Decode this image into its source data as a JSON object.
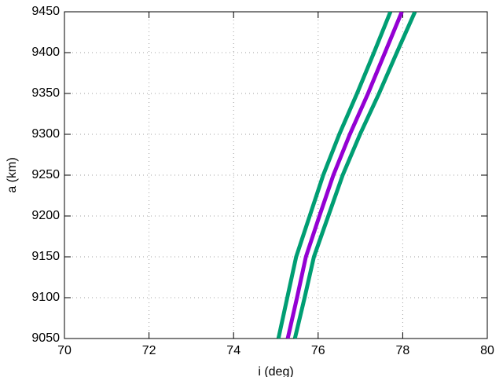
{
  "chart_data": {
    "type": "line",
    "xlabel": "i (deg)",
    "ylabel": "a (km)",
    "xlim": [
      70,
      80
    ],
    "xticks": [
      70,
      72,
      74,
      76,
      78,
      80
    ],
    "ylim": [
      9050,
      9450
    ],
    "yticks": [
      9050,
      9100,
      9150,
      9200,
      9250,
      9300,
      9350,
      9400,
      9450
    ],
    "grid": true,
    "series": [
      {
        "color": "#009e73",
        "x": [
          75.06,
          75.27,
          75.48,
          75.8,
          76.12,
          76.5,
          76.92,
          77.32,
          77.71
        ],
        "values": [
          9050,
          9100,
          9150,
          9200,
          9250,
          9300,
          9350,
          9400,
          9450
        ]
      },
      {
        "color": "#9400d3",
        "x": [
          75.28,
          75.5,
          75.71,
          76.03,
          76.36,
          76.75,
          77.18,
          77.58,
          77.98
        ],
        "values": [
          9050,
          9100,
          9150,
          9200,
          9250,
          9300,
          9350,
          9400,
          9450
        ]
      },
      {
        "color": "#009e73",
        "x": [
          75.45,
          75.68,
          75.9,
          76.24,
          76.58,
          76.99,
          77.44,
          77.86,
          78.29
        ],
        "values": [
          9050,
          9100,
          9150,
          9200,
          9250,
          9300,
          9350,
          9400,
          9450
        ]
      }
    ]
  }
}
